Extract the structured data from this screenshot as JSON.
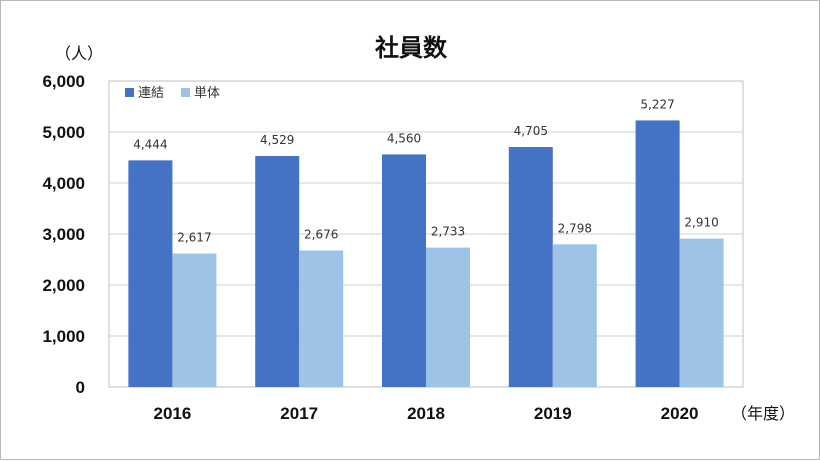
{
  "chart_data": {
    "type": "bar",
    "title": "社員数",
    "ylabel": "（人）",
    "xlabel": "（年度）",
    "categories": [
      "2016",
      "2017",
      "2018",
      "2019",
      "2020"
    ],
    "series": [
      {
        "name": "連結",
        "values": [
          4444,
          4529,
          4560,
          4705,
          5227
        ],
        "color": "#4472c4"
      },
      {
        "name": "単体",
        "values": [
          2617,
          2676,
          2733,
          2798,
          2910
        ],
        "color": "#9dc3e6"
      }
    ],
    "data_labels": [
      [
        "4,444",
        "4,529",
        "4,560",
        "4,705",
        "5,227"
      ],
      [
        "2,617",
        "2,676",
        "2,733",
        "2,798",
        "2,910"
      ]
    ],
    "ylim": [
      0,
      6000
    ],
    "yticks": [
      "0",
      "1,000",
      "2,000",
      "3,000",
      "4,000",
      "5,000",
      "6,000"
    ],
    "ytick_values": [
      0,
      1000,
      2000,
      3000,
      4000,
      5000,
      6000
    ],
    "grid": true,
    "legend_position": "top-left"
  }
}
